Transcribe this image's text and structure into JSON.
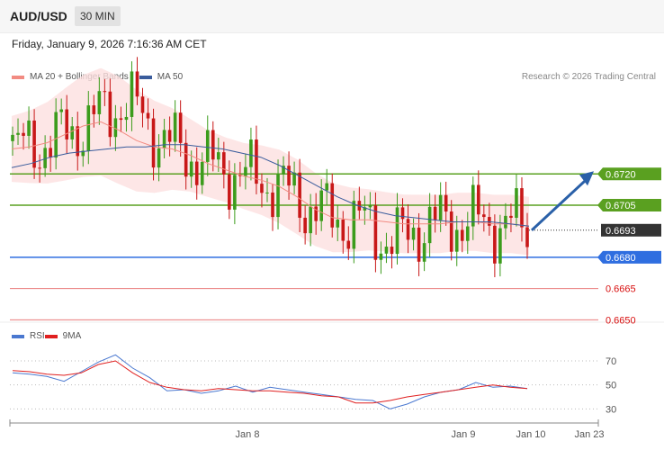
{
  "header": {
    "symbol": "AUD/USD",
    "timeframe": "30 MIN"
  },
  "timestamp": "Friday, January 9, 2026 7:16:36 AM CET",
  "legend": {
    "ma20": {
      "label": "MA 20 + Bollinger Bands",
      "color": "#f28b82"
    },
    "ma50": {
      "label": "MA 50",
      "color": "#3a5c9c"
    }
  },
  "credit": "Research © 2026 Trading Central",
  "rsi_legend": {
    "rsi": {
      "label": "RSI",
      "color": "#4a78d0"
    },
    "ma9": {
      "label": "9MA",
      "color": "#e02020"
    }
  },
  "chart_data": [
    {
      "type": "candlestick",
      "symbol": "AUD/USD",
      "timeframe": "30 MIN",
      "ylim": [
        0.6648,
        0.6762
      ],
      "x_labels": [
        "Jan 8",
        "Jan 9",
        "Jan 10",
        "Jan 23"
      ],
      "current_price": "0.6693",
      "levels": [
        {
          "label": "0.6720",
          "value": 0.672,
          "kind": "resistance",
          "color": "#5aa020"
        },
        {
          "label": "0.6705",
          "value": 0.6705,
          "kind": "resistance",
          "color": "#5aa020"
        },
        {
          "label": "0.6680",
          "value": 0.668,
          "kind": "pivot",
          "color": "#2f6ee0"
        },
        {
          "label": "0.6665",
          "value": 0.6665,
          "kind": "support",
          "color": "#d81010"
        },
        {
          "label": "0.6650",
          "value": 0.665,
          "kind": "support",
          "color": "#d81010"
        }
      ],
      "forecast": {
        "from": 0.6693,
        "to": 0.672,
        "direction": "up"
      },
      "series": [
        {
          "name": "MA 20 + Bollinger Bands",
          "values": [
            0.6732,
            0.6733,
            0.6735,
            0.6739,
            0.6743,
            0.6745,
            0.6741,
            0.6736,
            0.6733,
            0.6732,
            0.6729,
            0.6725,
            0.6722,
            0.6719,
            0.6717,
            0.6714,
            0.6709,
            0.6703,
            0.6699,
            0.6698,
            0.6698,
            0.6697,
            0.6696,
            0.6696,
            0.6696,
            0.6697,
            0.6697,
            0.6696,
            0.6696,
            0.6695
          ]
        },
        {
          "name": "MA 50",
          "values": [
            0.6723,
            0.6725,
            0.6728,
            0.673,
            0.6731,
            0.6732,
            0.6733,
            0.6733,
            0.6734,
            0.6734,
            0.6733,
            0.6732,
            0.673,
            0.6728,
            0.6724,
            0.6719,
            0.6714,
            0.6709,
            0.6705,
            0.6702,
            0.67,
            0.6699,
            0.6698,
            0.6697,
            0.6697,
            0.6697,
            0.6696,
            0.6695
          ]
        }
      ]
    },
    {
      "type": "line",
      "title": "RSI",
      "ylim": [
        22,
        82
      ],
      "y_ticks": [
        30,
        50,
        70
      ],
      "series": [
        {
          "name": "RSI",
          "values": [
            60,
            59,
            57,
            53,
            61,
            69,
            75,
            64,
            56,
            45,
            46,
            43,
            45,
            49,
            44,
            48,
            46,
            44,
            42,
            40,
            38,
            37,
            30,
            34,
            40,
            44,
            46,
            52,
            48,
            49,
            47
          ]
        },
        {
          "name": "9MA",
          "values": [
            62,
            61,
            59,
            58,
            60,
            67,
            70,
            60,
            52,
            48,
            46,
            45,
            47,
            46,
            45,
            45,
            44,
            43,
            41,
            40,
            35,
            35,
            37,
            40,
            42,
            44,
            46,
            48,
            50,
            48,
            47
          ]
        }
      ]
    }
  ]
}
